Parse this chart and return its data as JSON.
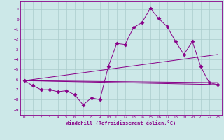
{
  "xlabel": "Windchill (Refroidissement éolien,°C)",
  "bg_color": "#cce8e8",
  "grid_color": "#aacccc",
  "line_color": "#880088",
  "xlim": [
    -0.5,
    23.5
  ],
  "ylim": [
    -9.5,
    1.8
  ],
  "yticks": [
    1,
    0,
    -1,
    -2,
    -3,
    -4,
    -5,
    -6,
    -7,
    -8,
    -9
  ],
  "xticks": [
    0,
    1,
    2,
    3,
    4,
    5,
    6,
    7,
    8,
    9,
    10,
    11,
    12,
    13,
    14,
    15,
    16,
    17,
    18,
    19,
    20,
    21,
    22,
    23
  ],
  "series": [
    {
      "x": [
        0,
        1,
        2,
        3,
        4,
        5,
        6,
        7,
        8,
        9,
        10,
        11,
        12,
        13,
        14,
        15,
        16,
        17,
        18,
        19,
        20,
        21,
        22,
        23
      ],
      "y": [
        -6.1,
        -6.6,
        -7.0,
        -7.0,
        -7.2,
        -7.1,
        -7.5,
        -8.5,
        -7.8,
        -8.0,
        -4.7,
        -2.4,
        -2.5,
        -0.8,
        -0.3,
        1.1,
        0.1,
        -0.7,
        -2.2,
        -3.5,
        -2.2,
        -4.7,
        -6.3,
        -6.5
      ],
      "marker": "D",
      "markersize": 2.5
    },
    {
      "x": [
        0,
        23
      ],
      "y": [
        -6.1,
        -6.5
      ]
    },
    {
      "x": [
        0,
        23
      ],
      "y": [
        -6.1,
        -3.5
      ]
    },
    {
      "x": [
        0,
        23
      ],
      "y": [
        -6.1,
        -6.3
      ]
    }
  ]
}
